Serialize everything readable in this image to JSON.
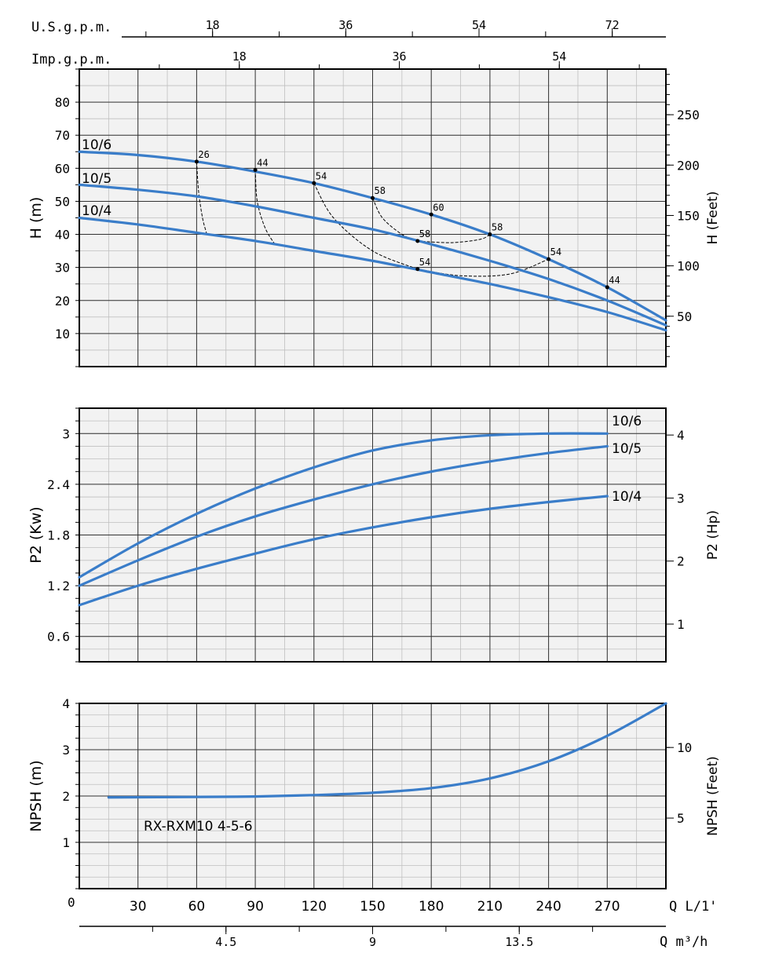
{
  "colors": {
    "curve": "#3a7dc9",
    "grid_major": "#333333",
    "grid_minor": "#bfbfbf",
    "panel_bg": "#f2f2f2"
  },
  "model_label": "RX-RXM10 4-5-6",
  "top_axes": {
    "usgpm": {
      "label": "U.S.g.p.m.",
      "ticks": [
        "18",
        "36",
        "54",
        "72"
      ]
    },
    "impgpm": {
      "label": "Imp.g.p.m.",
      "ticks": [
        "18",
        "36",
        "54"
      ]
    }
  },
  "bottom_axes": {
    "lmin": {
      "label": "Q  L/1'",
      "zero": "0",
      "ticks": [
        "30",
        "60",
        "90",
        "120",
        "150",
        "180",
        "210",
        "240",
        "270"
      ]
    },
    "m3h": {
      "label": "Q  m³/h",
      "ticks": [
        "4.5",
        "9",
        "13.5"
      ]
    }
  },
  "chart_data": [
    {
      "type": "line",
      "ylabel": "H (m)",
      "y2label": "H (Feet)",
      "xlim": [
        0,
        300
      ],
      "ylim": [
        0,
        90
      ],
      "yticks": [
        "10",
        "20",
        "30",
        "40",
        "50",
        "60",
        "70",
        "80"
      ],
      "y2ticks": [
        "50",
        "100",
        "150",
        "200",
        "250"
      ],
      "series": [
        {
          "name": "10/6",
          "x": [
            0,
            30,
            60,
            90,
            120,
            150,
            180,
            210,
            240,
            270,
            300
          ],
          "y": [
            65,
            64,
            62,
            59,
            55.5,
            51,
            46,
            40,
            32.5,
            24,
            14
          ]
        },
        {
          "name": "10/5",
          "x": [
            0,
            30,
            60,
            90,
            120,
            150,
            180,
            210,
            240,
            270,
            300
          ],
          "y": [
            55,
            53.5,
            51.5,
            48.5,
            45,
            41.5,
            37,
            32,
            26.5,
            20,
            12.5
          ]
        },
        {
          "name": "10/4",
          "x": [
            0,
            30,
            60,
            90,
            120,
            150,
            180,
            210,
            240,
            270,
            300
          ],
          "y": [
            45,
            43,
            40.5,
            38,
            35,
            32,
            28.5,
            25,
            21,
            16.5,
            11
          ]
        }
      ],
      "efficiency_points": [
        {
          "label": "26",
          "x": 60,
          "y": 62
        },
        {
          "label": "44",
          "x": 90,
          "y": 59.5
        },
        {
          "label": "54",
          "x": 120,
          "y": 55.5
        },
        {
          "label": "58",
          "x": 150,
          "y": 51
        },
        {
          "label": "60",
          "x": 180,
          "y": 46
        },
        {
          "label": "58",
          "x": 210,
          "y": 40
        },
        {
          "label": "54",
          "x": 240,
          "y": 32.5
        },
        {
          "label": "44",
          "x": 270,
          "y": 24
        },
        {
          "label": "58",
          "x": 173,
          "y": 38
        },
        {
          "label": "54",
          "x": 173,
          "y": 29.5
        }
      ],
      "iso_curves": [
        {
          "x": [
            60,
            61,
            63,
            65
          ],
          "y": [
            62,
            53,
            45,
            40.5
          ]
        },
        {
          "x": [
            90,
            91,
            95,
            100
          ],
          "y": [
            59.5,
            50,
            42,
            37
          ]
        },
        {
          "x": [
            120,
            130,
            150,
            173
          ],
          "y": [
            55.5,
            45,
            35,
            29.5
          ]
        },
        {
          "x": [
            173,
            195,
            220,
            240
          ],
          "y": [
            29.5,
            27.5,
            28,
            32.5
          ]
        },
        {
          "x": [
            150,
            155,
            165,
            173
          ],
          "y": [
            51,
            45,
            40,
            38
          ]
        },
        {
          "x": [
            173,
            190,
            205,
            210
          ],
          "y": [
            38,
            37.5,
            38.5,
            40
          ]
        }
      ]
    },
    {
      "type": "line",
      "ylabel": "P2 (Kw)",
      "y2label": "P2 (Hp)",
      "xlim": [
        0,
        300
      ],
      "ylim": [
        0.3,
        3.3
      ],
      "yticks": [
        "0.6",
        "1.2",
        "1.8",
        "2.4",
        "3"
      ],
      "y2ticks": [
        "1",
        "2",
        "3",
        "4"
      ],
      "series": [
        {
          "name": "10/6",
          "x": [
            0,
            30,
            60,
            90,
            120,
            150,
            180,
            210,
            240,
            270
          ],
          "y": [
            1.3,
            1.7,
            2.05,
            2.35,
            2.6,
            2.8,
            2.92,
            2.98,
            3.0,
            3.0
          ]
        },
        {
          "name": "10/5",
          "x": [
            0,
            30,
            60,
            90,
            120,
            150,
            180,
            210,
            240,
            270
          ],
          "y": [
            1.2,
            1.5,
            1.78,
            2.02,
            2.22,
            2.4,
            2.55,
            2.67,
            2.77,
            2.85
          ]
        },
        {
          "name": "10/4",
          "x": [
            0,
            30,
            60,
            90,
            120,
            150,
            180,
            210,
            240,
            270
          ],
          "y": [
            0.97,
            1.2,
            1.4,
            1.58,
            1.75,
            1.89,
            2.01,
            2.11,
            2.19,
            2.26
          ]
        }
      ]
    },
    {
      "type": "line",
      "ylabel": "NPSH (m)",
      "y2label": "NPSH (Feet)",
      "xlim": [
        0,
        300
      ],
      "ylim": [
        0,
        4
      ],
      "yticks": [
        "1",
        "2",
        "3",
        "4"
      ],
      "y2ticks": [
        "5",
        "10"
      ],
      "series": [
        {
          "name": "",
          "x": [
            15,
            60,
            90,
            120,
            150,
            180,
            210,
            240,
            270,
            300
          ],
          "y": [
            1.97,
            1.98,
            1.99,
            2.02,
            2.07,
            2.17,
            2.38,
            2.75,
            3.3,
            4.0
          ]
        }
      ]
    }
  ]
}
